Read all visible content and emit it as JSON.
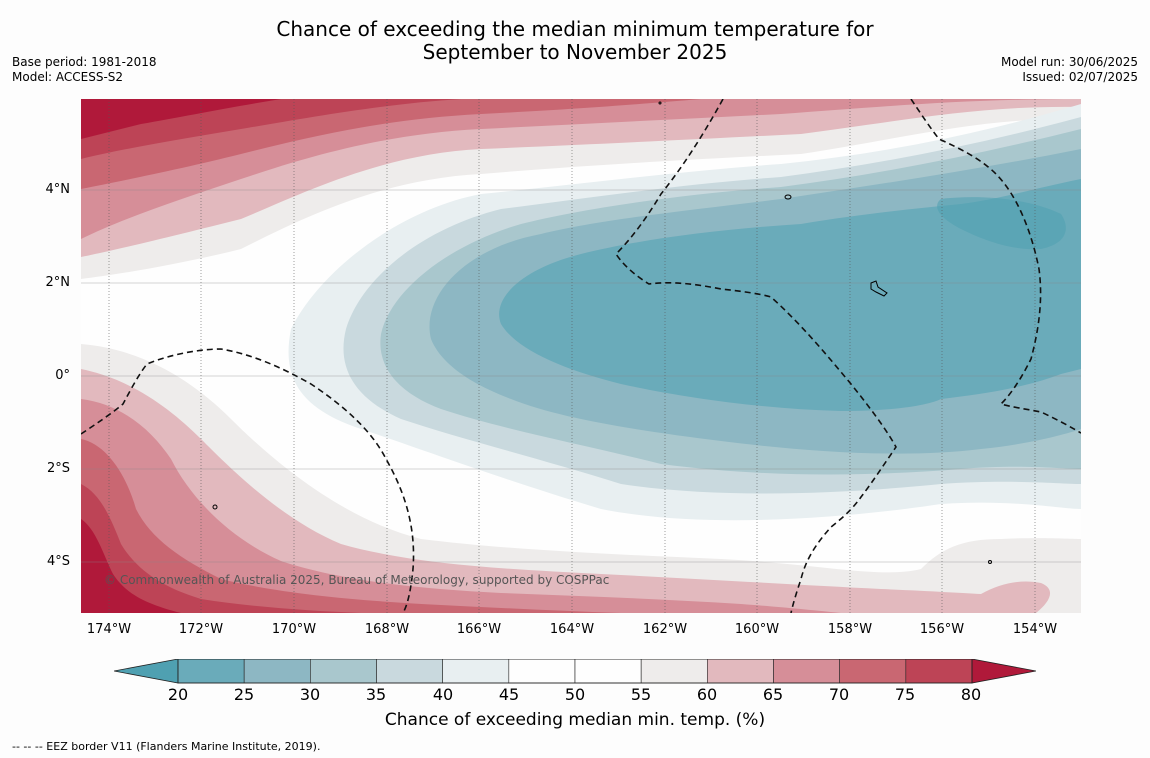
{
  "title": {
    "line1": "Chance of exceeding the median minimum temperature for",
    "line2": "September to November 2025"
  },
  "meta_left": {
    "base_period": "Base period: 1981-2018",
    "model": "Model: ACCESS-S2"
  },
  "meta_right": {
    "model_run": "Model run: 30/06/2025",
    "issued": "Issued: 02/07/2025"
  },
  "map": {
    "latitude_labels": [
      "4°N",
      "2°N",
      "0°",
      "2°S",
      "4°S"
    ],
    "longitude_labels": [
      "174°W",
      "172°W",
      "170°W",
      "168°W",
      "166°W",
      "164°W",
      "162°W",
      "160°W",
      "158°W",
      "156°W",
      "154°W"
    ],
    "copyright": "© Commonwealth of Australia 2025, Bureau of Meteorology, supported by COSPPac"
  },
  "colorbar": {
    "ticks": [
      "20",
      "25",
      "30",
      "35",
      "40",
      "45",
      "50",
      "55",
      "60",
      "65",
      "70",
      "75",
      "80"
    ],
    "colors": [
      "#4fa0b1",
      "#6aabba",
      "#8db7c3",
      "#a9c7cd",
      "#c9d9de",
      "#e8eff1",
      "#fefefe",
      "#fefefe",
      "#eeeceb",
      "#e2b9be",
      "#d68e98",
      "#c96772",
      "#bd4456",
      "#b0193a"
    ],
    "label": "Chance of exceeding median min. temp. (%)"
  },
  "legend_note": "--  --  -- EEZ border V11 (Flanders Marine Institute, 2019)."
}
